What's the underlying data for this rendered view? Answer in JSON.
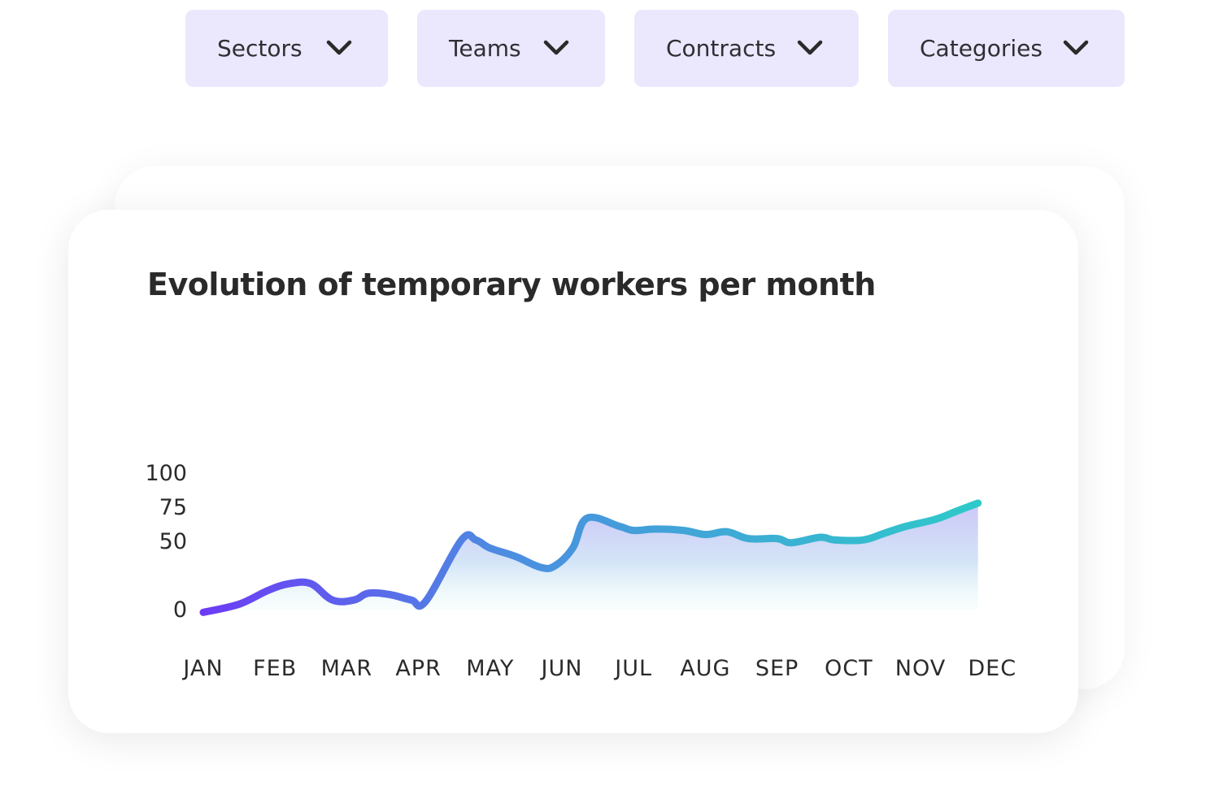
{
  "filters": [
    {
      "label": "Sectors",
      "icon": "chevron-down-icon"
    },
    {
      "label": "Teams",
      "icon": "chevron-down-icon"
    },
    {
      "label": "Contracts",
      "icon": "chevron-down-icon"
    },
    {
      "label": "Categories",
      "icon": "chevron-down-icon"
    }
  ],
  "colors": {
    "filter_bg": "#ebe7fd",
    "line_start": "#6c3cf5",
    "line_mid": "#4b8fe0",
    "line_end": "#2ec9c9",
    "area_top": "#c9c3f7"
  },
  "chart_data": {
    "type": "area",
    "title": "Evolution of temporary workers per month",
    "xlabel": "",
    "ylabel": "",
    "categories": [
      "JAN",
      "FEB",
      "MAR",
      "APR",
      "MAY",
      "JUN",
      "JUL",
      "AUG",
      "SEP",
      "OCT",
      "NOV",
      "DEC"
    ],
    "yticks": [
      "0",
      "50",
      "75",
      "100"
    ],
    "ylim": [
      0,
      115
    ],
    "grid": false,
    "legend": "none",
    "series": [
      {
        "x": [
          0,
          0.5,
          0.9,
          1.2,
          1.5,
          1.8,
          2.1,
          2.3,
          2.6,
          2.9,
          3.1,
          3.6,
          3.8,
          4.0,
          4.35,
          4.7,
          4.9,
          5.15,
          5.35,
          5.8,
          6.0,
          6.3,
          6.7,
          7.0,
          7.3,
          7.6,
          8.0,
          8.2,
          8.6,
          8.8,
          9.2,
          9.5,
          9.8,
          10.2,
          10.5,
          10.8
        ],
        "values": [
          -2,
          4,
          14,
          19,
          19,
          7,
          7,
          12,
          11,
          7,
          6,
          51,
          51,
          45,
          39,
          31,
          32,
          45,
          67,
          61,
          58,
          59,
          58,
          55,
          57,
          52,
          52,
          49,
          53,
          51,
          51,
          56,
          61,
          66,
          72,
          78
        ]
      }
    ]
  }
}
